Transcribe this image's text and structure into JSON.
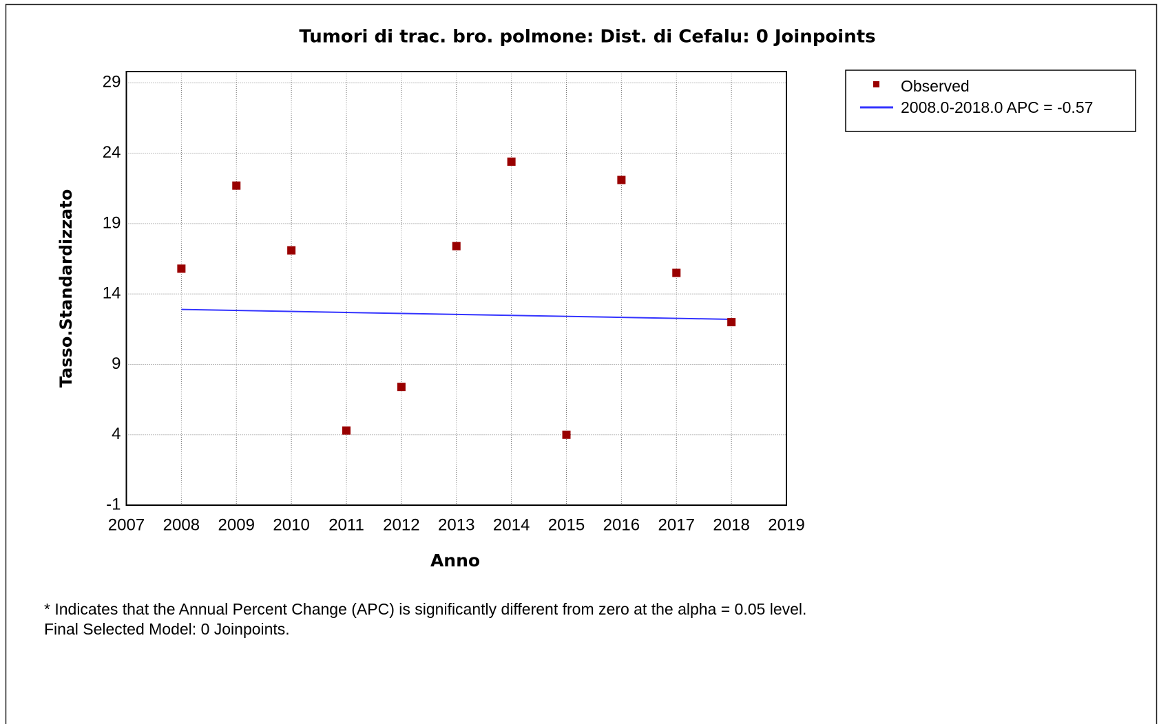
{
  "chart_data": {
    "type": "scatter",
    "title": "Tumori di trac. bro. polmone: Dist. di Cefalu: 0 Joinpoints",
    "x_label": "Anno",
    "y_label": "Tasso.Standardizzato",
    "xlim": [
      2007,
      2019
    ],
    "xticks": [
      2007,
      2008,
      2009,
      2010,
      2011,
      2012,
      2013,
      2014,
      2015,
      2016,
      2017,
      2018,
      2019
    ],
    "ylim": [
      -1,
      29.8
    ],
    "yticks": [
      -1,
      4,
      9,
      14,
      19,
      24,
      29
    ],
    "grid": true,
    "legend": "outside-right",
    "series": [
      {
        "name": "Observed",
        "type": "scatter",
        "color": "#990000",
        "x": [
          2008,
          2009,
          2010,
          2011,
          2012,
          2013,
          2014,
          2015,
          2016,
          2017,
          2018
        ],
        "values": [
          15.8,
          21.7,
          17.1,
          4.3,
          7.4,
          17.4,
          23.4,
          4.0,
          22.1,
          15.5,
          12.0
        ]
      },
      {
        "name": "2008.0-2018.0 APC  = -0.57",
        "type": "line",
        "color": "#3333ff",
        "x": [
          2008,
          2018
        ],
        "values": [
          12.9,
          12.2
        ]
      }
    ]
  },
  "notes": [
    "* Indicates that the Annual Percent Change (APC) is significantly different from zero at the alpha = 0.05 level.",
    "Final Selected Model: 0 Joinpoints."
  ]
}
